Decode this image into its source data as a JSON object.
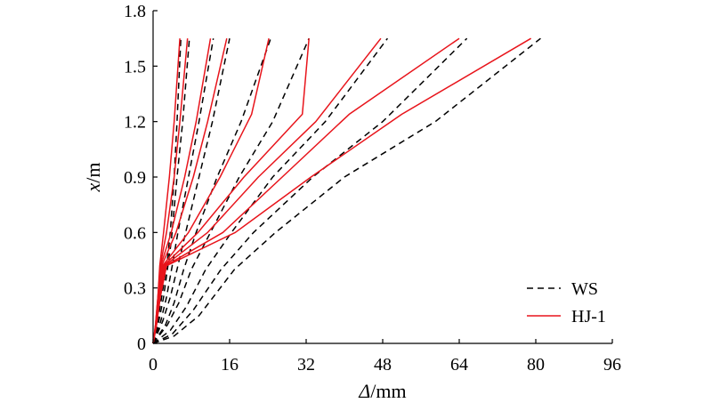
{
  "chart_data": {
    "type": "line",
    "title": "",
    "xlabel": {
      "symbol": "Δ",
      "unit": "/mm"
    },
    "ylabel": {
      "symbol": "x",
      "unit": "/m"
    },
    "xlim": [
      0,
      96
    ],
    "ylim": [
      0,
      1.8
    ],
    "xticks": [
      0,
      16,
      32,
      48,
      64,
      80,
      96
    ],
    "yticks": [
      0,
      0.3,
      0.6,
      0.9,
      1.2,
      1.5,
      1.8
    ],
    "ytick_labels": [
      "0",
      "0.3",
      "0.6",
      "0.9",
      "1.2",
      "1.5",
      "1.8"
    ],
    "grid": false,
    "legend": {
      "placement": "bottom-right",
      "entries": [
        {
          "label": "WS",
          "style": "dashed",
          "color": "#000000"
        },
        {
          "label": "HJ-1",
          "style": "solid",
          "color": "#e8141b"
        }
      ]
    },
    "series": [
      {
        "group": "WS",
        "style": "dashed",
        "color": "#000000",
        "points": [
          [
            0,
            0
          ],
          [
            0.8,
            0.1
          ],
          [
            1.6,
            0.22
          ],
          [
            2.4,
            0.35
          ],
          [
            3.0,
            0.45
          ],
          [
            3.6,
            0.6
          ],
          [
            4.4,
            0.9
          ],
          [
            5.0,
            1.2
          ],
          [
            5.8,
            1.65
          ]
        ]
      },
      {
        "group": "WS",
        "style": "dashed",
        "color": "#000000",
        "points": [
          [
            0,
            0
          ],
          [
            1.2,
            0.12
          ],
          [
            2.2,
            0.25
          ],
          [
            3.0,
            0.4
          ],
          [
            3.8,
            0.55
          ],
          [
            5.0,
            0.9
          ],
          [
            6.2,
            1.2
          ],
          [
            7.6,
            1.65
          ]
        ]
      },
      {
        "group": "WS",
        "style": "dashed",
        "color": "#000000",
        "points": [
          [
            0,
            0
          ],
          [
            1.6,
            0.12
          ],
          [
            2.8,
            0.25
          ],
          [
            4.0,
            0.42
          ],
          [
            5.2,
            0.6
          ],
          [
            7.4,
            0.9
          ],
          [
            9.6,
            1.2
          ],
          [
            12.6,
            1.65
          ]
        ]
      },
      {
        "group": "WS",
        "style": "dashed",
        "color": "#000000",
        "points": [
          [
            0,
            0
          ],
          [
            2.0,
            0.12
          ],
          [
            3.6,
            0.25
          ],
          [
            5.0,
            0.4
          ],
          [
            6.8,
            0.6
          ],
          [
            9.6,
            0.9
          ],
          [
            12.4,
            1.2
          ],
          [
            16.0,
            1.65
          ]
        ]
      },
      {
        "group": "WS",
        "style": "dashed",
        "color": "#000000",
        "points": [
          [
            0,
            0
          ],
          [
            2.6,
            0.1
          ],
          [
            4.4,
            0.22
          ],
          [
            6.4,
            0.4
          ],
          [
            9.0,
            0.6
          ],
          [
            13.4,
            0.9
          ],
          [
            18.4,
            1.2
          ],
          [
            24.6,
            1.65
          ]
        ]
      },
      {
        "group": "WS",
        "style": "dashed",
        "color": "#000000",
        "points": [
          [
            0,
            0
          ],
          [
            3.0,
            0.1
          ],
          [
            5.4,
            0.22
          ],
          [
            8.0,
            0.4
          ],
          [
            12.0,
            0.6
          ],
          [
            18.0,
            0.9
          ],
          [
            25.0,
            1.2
          ],
          [
            32.6,
            1.65
          ]
        ]
      },
      {
        "group": "WS",
        "style": "dashed",
        "color": "#000000",
        "points": [
          [
            0,
            0
          ],
          [
            3.6,
            0.07
          ],
          [
            7.0,
            0.2
          ],
          [
            11.0,
            0.4
          ],
          [
            16.4,
            0.6
          ],
          [
            25.0,
            0.9
          ],
          [
            36.0,
            1.2
          ],
          [
            49.0,
            1.65
          ]
        ]
      },
      {
        "group": "WS",
        "style": "dashed",
        "color": "#000000",
        "points": [
          [
            0,
            0
          ],
          [
            4.0,
            0.05
          ],
          [
            8.4,
            0.18
          ],
          [
            14.2,
            0.4
          ],
          [
            21.0,
            0.6
          ],
          [
            33.4,
            0.9
          ],
          [
            48.0,
            1.2
          ],
          [
            65.6,
            1.65
          ]
        ]
      },
      {
        "group": "WS",
        "style": "dashed",
        "color": "#000000",
        "points": [
          [
            0,
            0
          ],
          [
            4.4,
            0.04
          ],
          [
            9.6,
            0.15
          ],
          [
            17.0,
            0.4
          ],
          [
            25.6,
            0.6
          ],
          [
            40.0,
            0.9
          ],
          [
            59.0,
            1.2
          ],
          [
            81.0,
            1.65
          ]
        ]
      },
      {
        "group": "HJ-1",
        "style": "solid",
        "color": "#e8141b",
        "points": [
          [
            0,
            0
          ],
          [
            0.5,
            0.1
          ],
          [
            1.0,
            0.25
          ],
          [
            1.4,
            0.42
          ],
          [
            2.2,
            0.6
          ],
          [
            3.4,
            0.9
          ],
          [
            4.4,
            1.2
          ],
          [
            5.6,
            1.65
          ]
        ]
      },
      {
        "group": "HJ-1",
        "style": "solid",
        "color": "#e8141b",
        "points": [
          [
            0,
            0
          ],
          [
            0.5,
            0.1
          ],
          [
            1.0,
            0.25
          ],
          [
            1.5,
            0.42
          ],
          [
            2.8,
            0.6
          ],
          [
            4.4,
            0.9
          ],
          [
            5.6,
            1.2
          ],
          [
            7.2,
            1.65
          ]
        ]
      },
      {
        "group": "HJ-1",
        "style": "solid",
        "color": "#e8141b",
        "points": [
          [
            0,
            0
          ],
          [
            0.6,
            0.1
          ],
          [
            1.1,
            0.25
          ],
          [
            1.6,
            0.42
          ],
          [
            3.8,
            0.6
          ],
          [
            6.6,
            0.9
          ],
          [
            9.0,
            1.2
          ],
          [
            12.0,
            1.65
          ]
        ]
      },
      {
        "group": "HJ-1",
        "style": "solid",
        "color": "#e8141b",
        "points": [
          [
            0,
            0
          ],
          [
            0.6,
            0.1
          ],
          [
            1.2,
            0.25
          ],
          [
            1.8,
            0.42
          ],
          [
            4.8,
            0.6
          ],
          [
            8.4,
            0.9
          ],
          [
            11.4,
            1.2
          ],
          [
            15.4,
            1.65
          ]
        ]
      },
      {
        "group": "HJ-1",
        "style": "solid",
        "color": "#e8141b",
        "points": [
          [
            0,
            0
          ],
          [
            0.6,
            0.1
          ],
          [
            1.2,
            0.25
          ],
          [
            2.0,
            0.42
          ],
          [
            7.4,
            0.6
          ],
          [
            14.0,
            0.9
          ],
          [
            20.6,
            1.24
          ],
          [
            24.2,
            1.65
          ]
        ]
      },
      {
        "group": "HJ-1",
        "style": "solid",
        "color": "#e8141b",
        "points": [
          [
            0,
            0
          ],
          [
            0.7,
            0.1
          ],
          [
            1.3,
            0.25
          ],
          [
            2.2,
            0.42
          ],
          [
            9.4,
            0.6
          ],
          [
            19.0,
            0.9
          ],
          [
            31.2,
            1.24
          ],
          [
            32.6,
            1.65
          ]
        ]
      },
      {
        "group": "HJ-1",
        "style": "solid",
        "color": "#e8141b",
        "points": [
          [
            0,
            0
          ],
          [
            0.7,
            0.1
          ],
          [
            1.4,
            0.25
          ],
          [
            2.4,
            0.42
          ],
          [
            11.4,
            0.6
          ],
          [
            22.0,
            0.9
          ],
          [
            34.0,
            1.2
          ],
          [
            47.6,
            1.65
          ]
        ]
      },
      {
        "group": "HJ-1",
        "style": "solid",
        "color": "#e8141b",
        "points": [
          [
            0,
            0
          ],
          [
            0.7,
            0.1
          ],
          [
            1.4,
            0.25
          ],
          [
            2.6,
            0.42
          ],
          [
            14.6,
            0.6
          ],
          [
            27.0,
            0.9
          ],
          [
            41.0,
            1.24
          ],
          [
            64.0,
            1.65
          ]
        ]
      },
      {
        "group": "HJ-1",
        "style": "solid",
        "color": "#e8141b",
        "points": [
          [
            0,
            0
          ],
          [
            0.7,
            0.1
          ],
          [
            1.5,
            0.25
          ],
          [
            2.8,
            0.42
          ],
          [
            17.2,
            0.6
          ],
          [
            33.0,
            0.9
          ],
          [
            52.0,
            1.24
          ],
          [
            79.0,
            1.65
          ]
        ]
      }
    ]
  }
}
